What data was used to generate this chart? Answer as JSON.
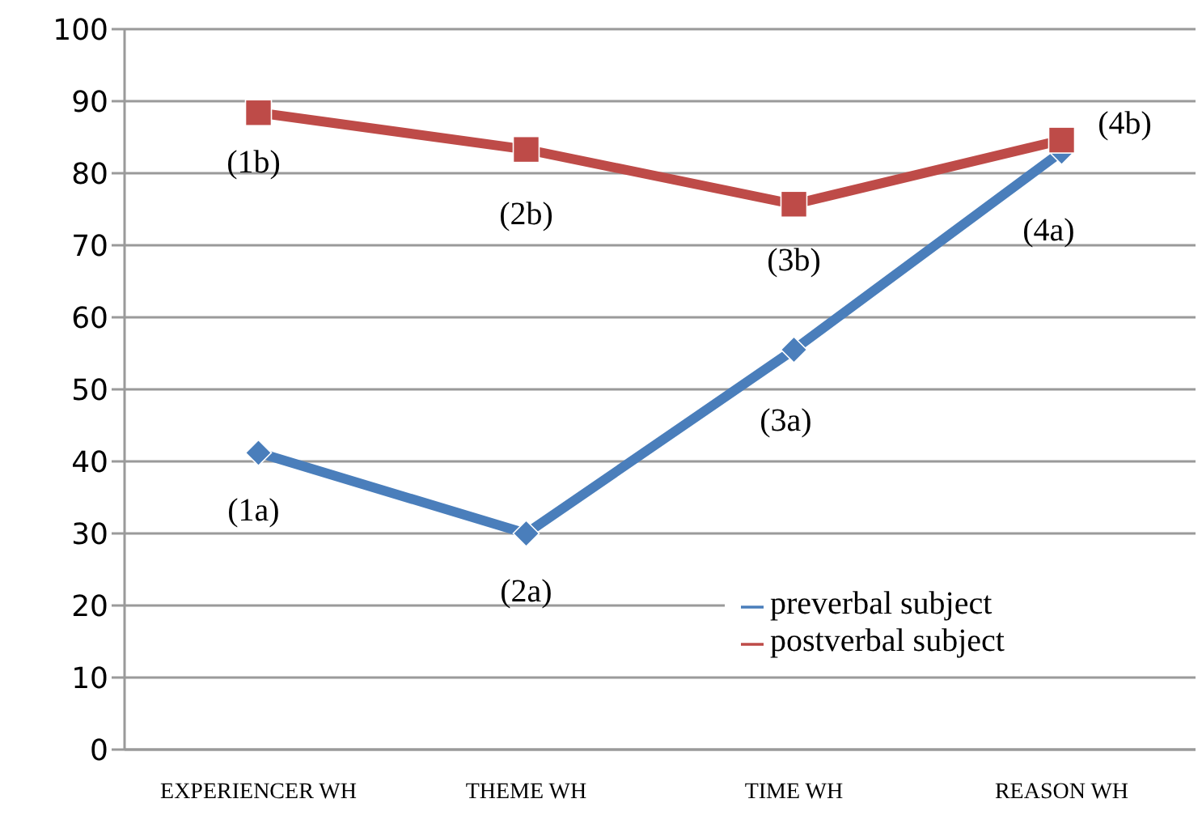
{
  "chart_data": {
    "type": "line",
    "categories": [
      "EXPERIENCER WH",
      "THEME WH",
      "TIME WH",
      "REASON WH"
    ],
    "series": [
      {
        "name": "preverbal subject",
        "color": "#4a7ebb",
        "values": [
          41.2,
          30,
          55.5,
          83
        ],
        "marker": "diamond"
      },
      {
        "name": "postverbal subject",
        "color": "#be4b48",
        "values": [
          88.4,
          83.3,
          75.7,
          84.6
        ],
        "marker": "square"
      }
    ],
    "annotations": [
      "(1a)",
      "(2a)",
      "(3a)",
      "(4a)",
      "(1b)",
      "(2b)",
      "(3b)",
      "(4b)"
    ],
    "ylim": [
      0,
      100
    ],
    "yticks": [
      0,
      10,
      20,
      30,
      40,
      50,
      60,
      70,
      80,
      90,
      100
    ],
    "grid": "y",
    "legend": "bottom right"
  }
}
